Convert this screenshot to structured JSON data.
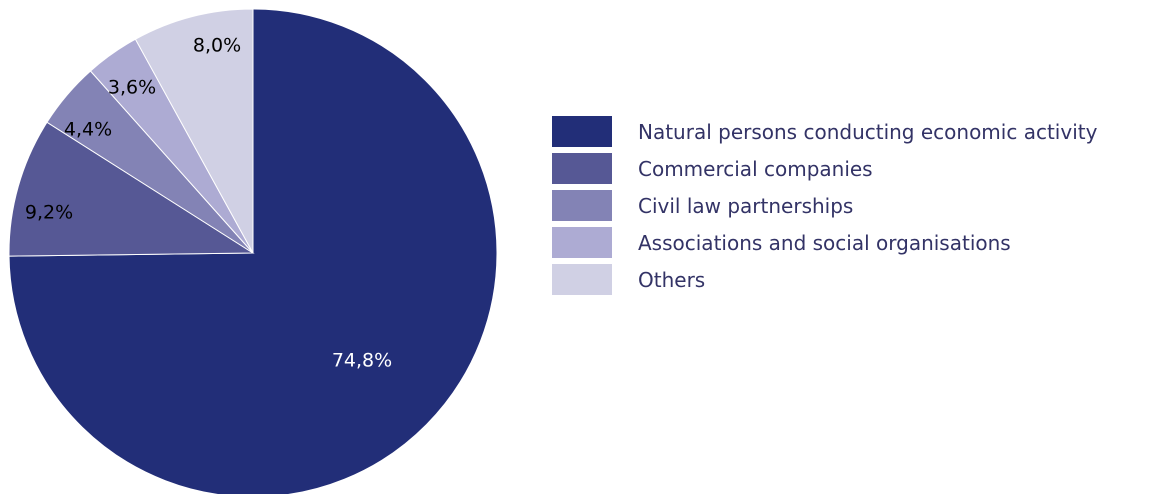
{
  "chart_data": {
    "type": "pie",
    "start": "top, clockwise",
    "slices": [
      {
        "label": "Natural persons conducting economic activity",
        "value": 74.8,
        "value_label": "74,8%",
        "color": "#222e78",
        "label_color": "#ffffff"
      },
      {
        "label": "Commercial companies",
        "value": 9.2,
        "value_label": "9,2%",
        "color": "#565895",
        "label_color": "#000000"
      },
      {
        "label": "Civil law partnerships",
        "value": 4.4,
        "value_label": "4,4%",
        "color": "#8383b5",
        "label_color": "#000000"
      },
      {
        "label": "Associations and social organisations",
        "value": 3.6,
        "value_label": "3,6%",
        "color": "#adabd3",
        "label_color": "#000000"
      },
      {
        "label": "Others",
        "value": 8.0,
        "value_label": "8,0%",
        "color": "#d0d0e4",
        "label_color": "#000000"
      }
    ],
    "legend_position": "right"
  }
}
